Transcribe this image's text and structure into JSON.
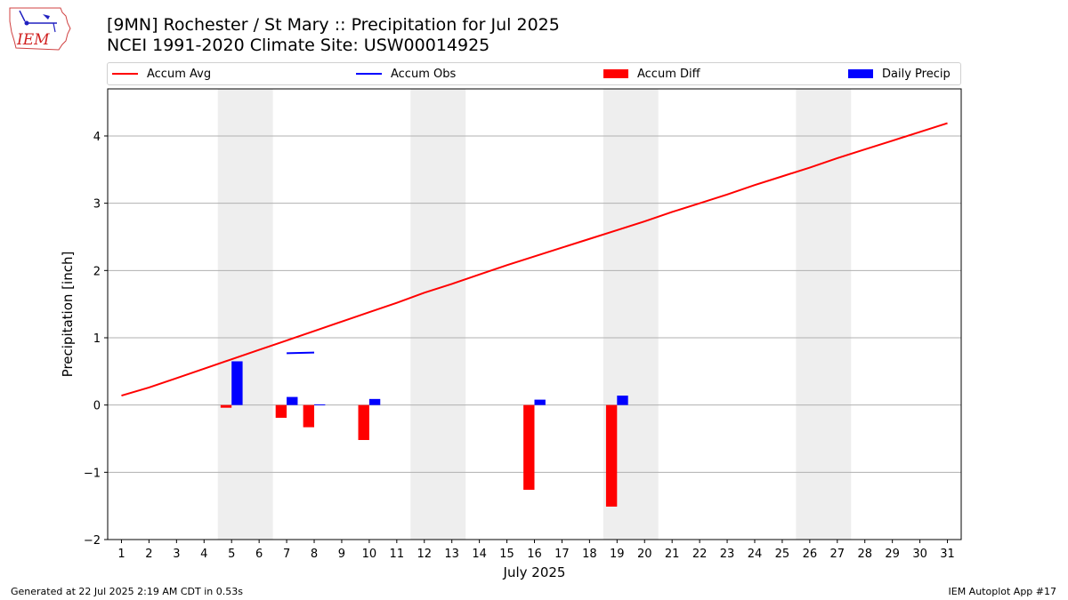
{
  "header": {
    "title": "[9MN] Rochester / St Mary :: Precipitation for Jul 2025",
    "subtitle": "NCEI 1991-2020 Climate Site: USW00014925"
  },
  "logo": {
    "text": "IEM",
    "icon": "iem-iowa-logo-icon"
  },
  "footer": {
    "left": "Generated at 22 Jul 2025 2:19 AM CDT in 0.53s",
    "right": "IEM Autoplot App #17"
  },
  "colors": {
    "accum_avg": "#ff0000",
    "accum_obs": "#0000ff",
    "accum_diff": "#ff0000",
    "daily_precip": "#0000ff",
    "weekend_band": "#eeeeee",
    "grid": "#b0b0b0"
  },
  "chart_data": {
    "type": "bar",
    "xlabel": "July 2025",
    "ylabel": "Precipitation [inch]",
    "xlim": [
      0.5,
      31.5
    ],
    "ylim": [
      -2,
      4.7
    ],
    "yticks": [
      -2,
      -1,
      0,
      1,
      2,
      3,
      4
    ],
    "ytick_labels": [
      "−2",
      "−1",
      "0",
      "1",
      "2",
      "3",
      "4"
    ],
    "xticks": [
      1,
      2,
      3,
      4,
      5,
      6,
      7,
      8,
      9,
      10,
      11,
      12,
      13,
      14,
      15,
      16,
      17,
      18,
      19,
      20,
      21,
      22,
      23,
      24,
      25,
      26,
      27,
      28,
      29,
      30,
      31
    ],
    "grid": "horizontal",
    "legend": "top, outside",
    "weekend_bands": [
      [
        5,
        6
      ],
      [
        12,
        13
      ],
      [
        19,
        20
      ],
      [
        26,
        27
      ]
    ],
    "series": [
      {
        "name": "Accum Avg",
        "kind": "line",
        "x": [
          1,
          2,
          3,
          4,
          5,
          6,
          7,
          8,
          9,
          10,
          11,
          12,
          13,
          14,
          15,
          16,
          17,
          18,
          19,
          20,
          21,
          22,
          23,
          24,
          25,
          26,
          27,
          28,
          29,
          30,
          31
        ],
        "values": [
          0.14,
          0.26,
          0.4,
          0.54,
          0.68,
          0.82,
          0.96,
          1.1,
          1.24,
          1.38,
          1.52,
          1.67,
          1.8,
          1.94,
          2.08,
          2.21,
          2.34,
          2.47,
          2.6,
          2.73,
          2.87,
          3.0,
          3.13,
          3.27,
          3.4,
          3.53,
          3.67,
          3.8,
          3.93,
          4.06,
          4.19
        ]
      },
      {
        "name": "Accum Obs",
        "kind": "line",
        "x": [
          7,
          8
        ],
        "values": [
          0.77,
          0.78
        ]
      },
      {
        "name": "Accum Diff",
        "kind": "bar",
        "offset": -0.2,
        "x": [
          5,
          7,
          8,
          10,
          16,
          19
        ],
        "values": [
          -0.04,
          -0.19,
          -0.33,
          -0.52,
          -1.26,
          -1.51
        ]
      },
      {
        "name": "Daily Precip",
        "kind": "bar",
        "offset": 0.2,
        "x": [
          5,
          7,
          8,
          10,
          16,
          19
        ],
        "values": [
          0.65,
          0.12,
          0.01,
          0.09,
          0.08,
          0.14
        ]
      }
    ]
  }
}
